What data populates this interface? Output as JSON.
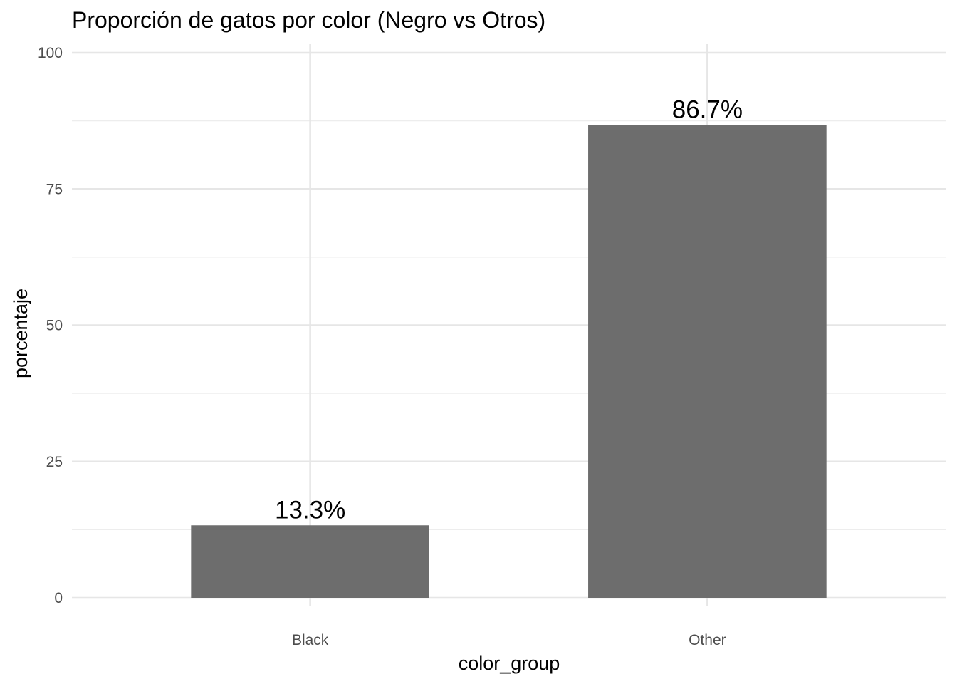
{
  "chart_data": {
    "type": "bar",
    "title": "Proporción de gatos por color (Negro vs Otros)",
    "xlabel": "color_group",
    "ylabel": "porcentaje",
    "categories": [
      "Black",
      "Other"
    ],
    "values": [
      13.3,
      86.7
    ],
    "data_labels": [
      "13.3%",
      "86.7%"
    ],
    "ylim": [
      0,
      100
    ],
    "yticks": [
      0,
      25,
      50,
      75,
      100
    ],
    "grid": true,
    "legend": "none",
    "bar_color": "#6d6d6d"
  }
}
